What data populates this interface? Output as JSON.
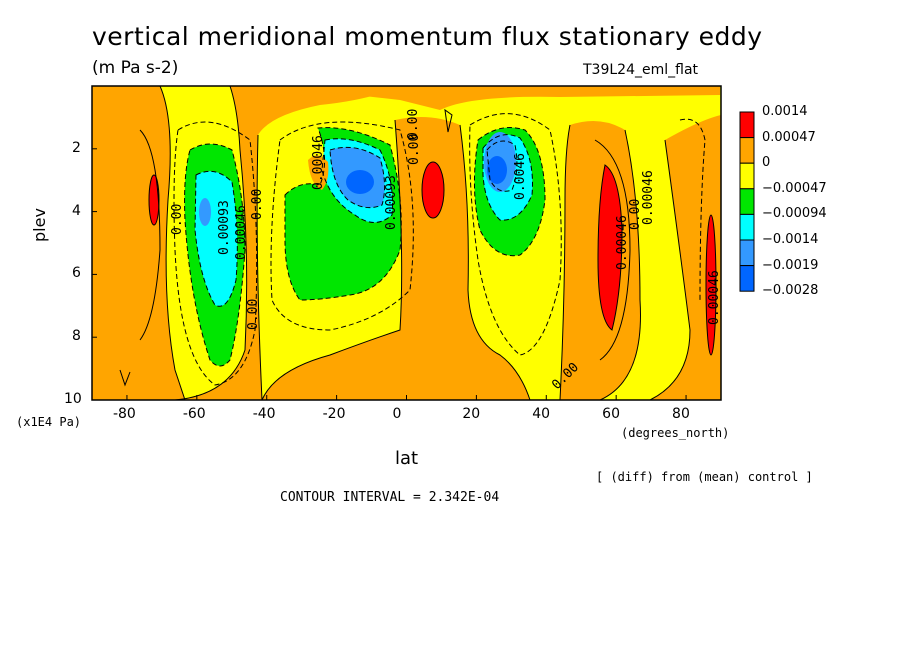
{
  "chart_data": {
    "type": "heatmap",
    "title": "vertical meridional momentum flux stationary eddy",
    "units": "(m Pa s-2)",
    "run_name": "T39L24_eml_flat",
    "xlabel": "lat",
    "x_units": "(degrees_north)",
    "ylabel": "plev",
    "y_units": "(x1E4 Pa)",
    "xlim": [
      -90,
      90
    ],
    "ylim": [
      10,
      0
    ],
    "x_ticks": [
      "-80",
      "-60",
      "-40",
      "-20",
      "0",
      "20",
      "40",
      "60",
      "80"
    ],
    "x_tick_values": [
      -80,
      -60,
      -40,
      -20,
      0,
      20,
      40,
      60,
      80
    ],
    "y_ticks": [
      "2",
      "4",
      "6",
      "8",
      "10"
    ],
    "y_tick_values": [
      2,
      4,
      6,
      8,
      10
    ],
    "legend_levels": [
      "0.0014",
      "0.00047",
      "0",
      "−0.00047",
      "−0.00094",
      "−0.0014",
      "−0.0019",
      "−0.0028"
    ],
    "legend_colors": [
      "#ff0000",
      "#ffa500",
      "#ffff00",
      "#00e600",
      "#00ffff",
      "#3399ff",
      "#0066ff"
    ],
    "note": "[ (diff) from (mean) control ]",
    "contour_interval": "CONTOUR INTERVAL = 2.342E-04",
    "contour_labels": [
      "0.00",
      "0.00093",
      "0.00046",
      "0.00",
      "0.00046",
      "0.00093",
      "0.00",
      "0.0046",
      "0.00",
      "0.00046",
      "0.00",
      "0.00046",
      "0.00",
      "0.00",
      "0.00046"
    ],
    "features": [
      {
        "kind": "positive",
        "lat": -70,
        "plev": 3.7
      },
      {
        "kind": "negative",
        "lat": -55,
        "plev": 5.5
      },
      {
        "kind": "negative",
        "lat": -15,
        "plev": 3.0
      },
      {
        "kind": "positive",
        "lat": 8,
        "plev": 3.7
      },
      {
        "kind": "negative",
        "lat": 25,
        "plev": 3.0
      },
      {
        "kind": "positive",
        "lat": 57,
        "plev": 5.5
      },
      {
        "kind": "positive",
        "lat": 85,
        "plev": 6.5
      }
    ]
  }
}
